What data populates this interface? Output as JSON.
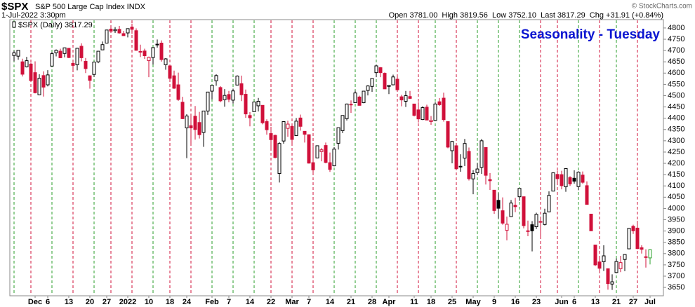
{
  "header": {
    "symbol": "$SPX",
    "description": "S&P 500 Large Cap Index INDX",
    "datetime": "1-Jul-2022 3:30pm",
    "quote": "Open 3781.00  High 3819.56  Low 3752.10  Last 3817.29  Chg +31.91 (+0.84%)",
    "credit": "© StockCharts.com"
  },
  "chart_data": {
    "type": "candlestick",
    "title": "Seasonality - Tuesday",
    "legend": "$SPX (Daily)",
    "up_color": "#000000",
    "down_color": "#d0103a",
    "last_color": "#2ca02c",
    "line_up_color": "#2a9d2a",
    "line_down_color": "#d0103a",
    "ylim": [
      3613,
      4837
    ],
    "yticks": [
      3650,
      3700,
      3750,
      3800,
      3850,
      3900,
      3950,
      4000,
      4050,
      4100,
      4150,
      4200,
      4250,
      4300,
      4350,
      4400,
      4450,
      4500,
      4550,
      4600,
      4650,
      4700,
      4750,
      4800
    ],
    "categories": [
      null,
      null,
      null,
      null,
      null,
      "Dec",
      null,
      null,
      "6",
      null,
      null,
      null,
      null,
      "13",
      null,
      null,
      null,
      null,
      "20",
      null,
      null,
      null,
      "27",
      null,
      null,
      null,
      null,
      "2022",
      null,
      null,
      null,
      null,
      "10",
      null,
      null,
      null,
      null,
      "18",
      null,
      null,
      null,
      "24",
      null,
      null,
      null,
      null,
      null,
      "Feb",
      null,
      null,
      null,
      "7",
      null,
      null,
      null,
      null,
      "14",
      null,
      null,
      null,
      null,
      "22",
      null,
      null,
      null,
      null,
      "Mar",
      null,
      null,
      null,
      "7",
      null,
      null,
      null,
      null,
      "14",
      null,
      null,
      null,
      null,
      "21",
      null,
      null,
      null,
      null,
      "28",
      null,
      null,
      null,
      "Apr",
      null,
      null,
      null,
      null,
      null,
      "11",
      null,
      null,
      null,
      "18",
      null,
      null,
      null,
      null,
      "25",
      null,
      null,
      null,
      null,
      "May",
      null,
      null,
      null,
      null,
      "9",
      null,
      null,
      null,
      null,
      "16",
      null,
      null,
      null,
      null,
      "23",
      null,
      null,
      null,
      null,
      null,
      "Jun",
      null,
      null,
      "6",
      null,
      null,
      null,
      null,
      "13",
      null,
      null,
      null,
      null,
      "21",
      null,
      null,
      null,
      "27",
      null,
      null,
      null,
      "Jul"
    ],
    "seasonality_days": [
      0,
      4,
      9,
      14,
      19,
      23,
      28,
      33,
      37,
      42,
      47,
      52,
      57,
      61,
      66,
      71,
      76,
      81,
      86,
      91,
      96,
      100,
      105,
      110,
      115,
      120,
      125,
      129,
      134,
      139,
      143,
      148
    ],
    "open": [
      4678,
      4675,
      4650,
      4628,
      4640,
      4602,
      4504,
      4589,
      4548,
      4631,
      4690,
      4697,
      4687,
      4710,
      4643,
      4637,
      4719,
      4652,
      4588,
      4594,
      4650,
      4703,
      4733,
      4795,
      4788,
      4794,
      4775,
      4778,
      4804,
      4788,
      4693,
      4698,
      4655,
      4669,
      4728,
      4733,
      4637,
      4632,
      4588,
      4548,
      4471,
      4357,
      4367,
      4409,
      4381,
      4337,
      4432,
      4520,
      4566,
      4536,
      4482,
      4505,
      4480,
      4547,
      4553,
      4506,
      4412,
      4429,
      4455,
      4457,
      4385,
      4332,
      4324,
      4155,
      4299,
      4355,
      4364,
      4323,
      4401,
      4342,
      4327,
      4203,
      4224,
      4252,
      4279,
      4203,
      4189,
      4289,
      4345,
      4398,
      4462,
      4469,
      4494,
      4469,
      4523,
      4541,
      4602,
      4624,
      4599,
      4541,
      4548,
      4573,
      4495,
      4475,
      4496,
      4463,
      4437,
      4394,
      4449,
      4385,
      4390,
      4473,
      4489,
      4385,
      4256,
      4278,
      4187,
      4223,
      4253,
      4131,
      4159,
      4182,
      4270,
      4128,
      4081,
      4036,
      3990,
      3903,
      3964,
      4014,
      4052,
      4052,
      3900,
      3928,
      3919,
      3942,
      3929,
      3985,
      4077,
      4151,
      4150,
      4096,
      4137,
      4134,
      4097,
      4148,
      4101,
      3975,
      3838,
      3763,
      3764,
      3733,
      3665,
      3716,
      3733,
      3774,
      3821,
      3921,
      3913,
      3826,
      3786,
      3781
    ],
    "high": [
      4699,
      4702,
      4664,
      4672,
      4646,
      4652,
      4595,
      4608,
      4613,
      4694,
      4705,
      4708,
      4713,
      4711,
      4660,
      4712,
      4732,
      4667,
      4590,
      4651,
      4697,
      4740,
      4791,
      4807,
      4804,
      4809,
      4787,
      4797,
      4819,
      4798,
      4726,
      4708,
      4673,
      4714,
      4749,
      4745,
      4666,
      4632,
      4611,
      4602,
      4495,
      4418,
      4411,
      4454,
      4428,
      4432,
      4516,
      4546,
      4595,
      4542,
      4529,
      4521,
      4531,
      4590,
      4589,
      4527,
      4427,
      4473,
      4490,
      4457,
      4395,
      4362,
      4327,
      4294,
      4385,
      4389,
      4375,
      4401,
      4416,
      4343,
      4327,
      4277,
      4279,
      4268,
      4292,
      4248,
      4272,
      4358,
      4412,
      4465,
      4479,
      4522,
      4500,
      4520,
      4546,
      4576,
      4637,
      4627,
      4603,
      4548,
      4593,
      4594,
      4504,
      4521,
      4521,
      4464,
      4471,
      4453,
      4460,
      4410,
      4471,
      4489,
      4513,
      4386,
      4300,
      4278,
      4240,
      4308,
      4270,
      4170,
      4200,
      4308,
      4270,
      4157,
      4082,
      4068,
      4049,
      3964,
      4038,
      4047,
      4090,
      4053,
      3946,
      3944,
      3981,
      3955,
      3999,
      4076,
      4158,
      4168,
      4167,
      4177,
      4143,
      4169,
      4165,
      4164,
      4120,
      3976,
      3839,
      3779,
      3837,
      3733,
      3708,
      3779,
      3790,
      3797,
      3913,
      3928,
      3945,
      3837,
      3819,
      3819.56
    ],
    "low": [
      4652,
      4659,
      4585,
      4625,
      4560,
      4510,
      4504,
      4496,
      4541,
      4631,
      4674,
      4666,
      4670,
      4666,
      4606,
      4612,
      4652,
      4600,
      4531,
      4583,
      4644,
      4703,
      4733,
      4780,
      4778,
      4775,
      4765,
      4758,
      4774,
      4699,
      4671,
      4663,
      4582,
      4638,
      4713,
      4651,
      4615,
      4568,
      4530,
      4477,
      4396,
      4223,
      4287,
      4305,
      4310,
      4273,
      4415,
      4484,
      4544,
      4471,
      4451,
      4471,
      4465,
      4547,
      4476,
      4402,
      4364,
      4429,
      4430,
      4373,
      4327,
      4267,
      4222,
      4115,
      4287,
      4318,
      4279,
      4322,
      4345,
      4292,
      4199,
      4157,
      4224,
      4209,
      4200,
      4162,
      4187,
      4261,
      4334,
      4390,
      4424,
      4469,
      4456,
      4466,
      4501,
      4517,
      4582,
      4582,
      4530,
      4507,
      4546,
      4517,
      4453,
      4450,
      4485,
      4408,
      4381,
      4392,
      4392,
      4371,
      4390,
      4455,
      4385,
      4267,
      4200,
      4175,
      4163,
      4188,
      4124,
      4063,
      4148,
      4153,
      4106,
      4082,
      3976,
      3956,
      3928,
      3859,
      3963,
      3984,
      4034,
      3912,
      3877,
      3810,
      3909,
      3875,
      3925,
      3985,
      4077,
      4104,
      4085,
      4074,
      4100,
      4110,
      4081,
      4110,
      4018,
      3901,
      3745,
      3725,
      3723,
      3640,
      3639,
      3716,
      3718,
      3722,
      3821,
      3887,
      3820,
      3800,
      3738,
      3752.1
    ],
    "close": [
      4690,
      4701,
      4595,
      4655,
      4567,
      4513,
      4577,
      4538,
      4592,
      4686,
      4701,
      4668,
      4712,
      4669,
      4634,
      4710,
      4668,
      4620,
      4568,
      4649,
      4697,
      4726,
      4791,
      4786,
      4793,
      4778,
      4766,
      4797,
      4794,
      4701,
      4696,
      4677,
      4670,
      4713,
      4726,
      4660,
      4663,
      4577,
      4533,
      4483,
      4398,
      4410,
      4357,
      4350,
      4327,
      4432,
      4516,
      4546,
      4589,
      4477,
      4501,
      4484,
      4521,
      4587,
      4504,
      4419,
      4402,
      4472,
      4475,
      4380,
      4349,
      4305,
      4226,
      4288,
      4385,
      4374,
      4306,
      4387,
      4364,
      4329,
      4201,
      4171,
      4278,
      4260,
      4204,
      4173,
      4263,
      4358,
      4412,
      4463,
      4461,
      4512,
      4457,
      4520,
      4543,
      4576,
      4632,
      4602,
      4530,
      4546,
      4583,
      4526,
      4481,
      4500,
      4488,
      4413,
      4397,
      4447,
      4392,
      4391,
      4463,
      4460,
      4394,
      4272,
      4297,
      4176,
      4184,
      4288,
      4132,
      4155,
      4175,
      4300,
      4147,
      4123,
      3991,
      4001,
      3935,
      3930,
      4024,
      4008,
      4089,
      3924,
      3901,
      3901,
      3974,
      3941,
      3979,
      4058,
      4158,
      4132,
      4101,
      4177,
      4109,
      4121,
      4161,
      4116,
      4018,
      3901,
      3750,
      3735,
      3790,
      3667,
      3675,
      3765,
      3760,
      3796,
      3912,
      3901,
      3822,
      3819,
      3785,
      3817.29
    ]
  }
}
